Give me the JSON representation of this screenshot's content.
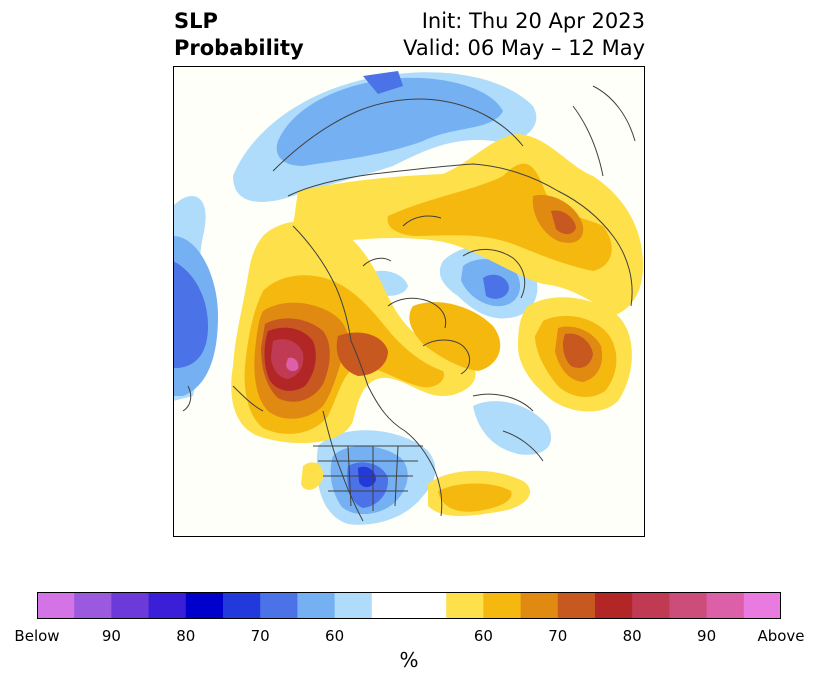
{
  "header": {
    "title_line1": "SLP",
    "title_line2": "Probability",
    "init": "Init: Thu 20 Apr 2023",
    "valid": "Valid: 06 May – 12 May"
  },
  "colorbar": {
    "unit": "%",
    "bins": [
      {
        "color": "#d473e6"
      },
      {
        "color": "#9b59e0"
      },
      {
        "color": "#6b3ad8"
      },
      {
        "color": "#3a1ed8"
      },
      {
        "color": "#0000cc"
      },
      {
        "color": "#2239dc"
      },
      {
        "color": "#4b72e6"
      },
      {
        "color": "#74b0f2"
      },
      {
        "color": "#aedcfa"
      },
      {
        "color": "#ffffff"
      },
      {
        "color": "#ffffff"
      },
      {
        "color": "#fde04a"
      },
      {
        "color": "#f5b80f"
      },
      {
        "color": "#e08a12"
      },
      {
        "color": "#c75820"
      },
      {
        "color": "#b22626"
      },
      {
        "color": "#c03a54"
      },
      {
        "color": "#cc4d7a"
      },
      {
        "color": "#dc60a8"
      },
      {
        "color": "#e87ae0"
      }
    ],
    "ticks": [
      {
        "label": "Below",
        "frac": 0.0
      },
      {
        "label": "90",
        "frac": 0.1
      },
      {
        "label": "80",
        "frac": 0.2
      },
      {
        "label": "70",
        "frac": 0.3
      },
      {
        "label": "60",
        "frac": 0.4
      },
      {
        "label": "60",
        "frac": 0.6
      },
      {
        "label": "70",
        "frac": 0.7
      },
      {
        "label": "80",
        "frac": 0.8
      },
      {
        "label": "90",
        "frac": 0.9
      },
      {
        "label": "Above",
        "frac": 1.0
      }
    ]
  },
  "map": {
    "colors": {
      "ocean": "#fffff9",
      "coast": "#404040",
      "below_light": "#aedcfa",
      "below_mid": "#74b0f2",
      "below_dark": "#4b72e6",
      "below_deep": "#2239dc",
      "above_light": "#fde04a",
      "above_mid": "#f5b80f",
      "above_orange": "#e08a12",
      "above_rust": "#c75820",
      "above_red": "#b22626",
      "above_rose": "#c03a54",
      "above_pink": "#dc60a8"
    }
  }
}
